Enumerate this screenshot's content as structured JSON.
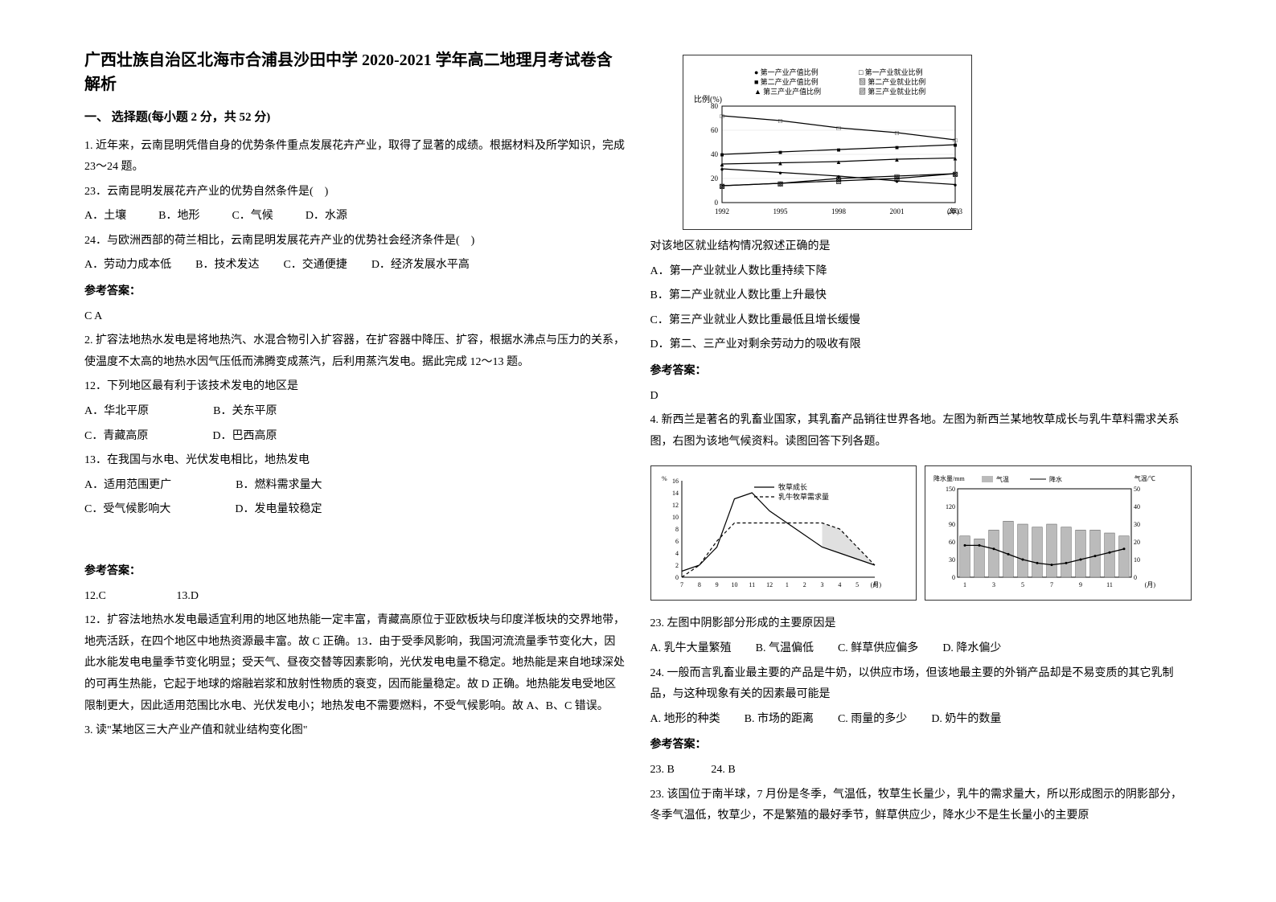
{
  "title": "广西壮族自治区北海市合浦县沙田中学 2020-2021 学年高二地理月考试卷含解析",
  "section1": "一、 选择题(每小题 2 分，共 52 分)",
  "q1": {
    "stem": "1. 近年来，云南昆明凭借自身的优势条件重点发展花卉产业，取得了显著的成绩。根据材料及所学知识，完成 23～24 题。",
    "sub23": "23．云南昆明发展花卉产业的优势自然条件是(　)",
    "opts23": {
      "A": "A．土壤",
      "B": "B．地形",
      "C": "C．气候",
      "D": "D．水源"
    },
    "sub24": "24．与欧洲西部的荷兰相比，云南昆明发展花卉产业的优势社会经济条件是(　)",
    "opts24": {
      "A": "A．劳动力成本低",
      "B": "B．技术发达",
      "C": "C．交通便捷",
      "D": "D．经济发展水平高"
    },
    "ansLabel": "参考答案：",
    "ans": "C A"
  },
  "q2": {
    "stem": "2. 扩容法地热水发电是将地热汽、水混合物引入扩容器，在扩容器中降压、扩容，根据水沸点与压力的关系，使温度不太高的地热水因气压低而沸腾变成蒸汽，后利用蒸汽发电。据此完成 12～13 题。",
    "sub12": "12．下列地区最有利于该技术发电的地区是",
    "opts12a": {
      "A": "A．华北平原",
      "B": "B．关东平原"
    },
    "opts12b": {
      "C": "C．青藏高原",
      "D": "D．巴西高原"
    },
    "sub13": "13．在我国与水电、光伏发电相比，地热发电",
    "opts13a": {
      "A": "A．适用范围更广",
      "B": "B．燃料需求量大"
    },
    "opts13b": {
      "C": "C．受气候影响大",
      "D": "D．发电量较稳定"
    },
    "ansLabel": "参考答案：",
    "ans1": "12.C　　　　　　 13.D",
    "expl1": "12．扩容法地热水发电最适宜利用的地区地热能一定丰富，青藏高原位于亚欧板块与印度洋板块的交界地带，地壳活跃，在四个地区中地热资源最丰富。故 C 正确。13．由于受季风影响，我国河流流量季节变化大，因此水能发电电量季节变化明显；受天气、昼夜交替等因素影响，光伏发电电量不稳定。地热能是来自地球深处的可再生热能，它起于地球的熔融岩浆和放射性物质的衰变，因而能量稳定。故 D 正确。地热能发电受地区限制更大，因此适用范围比水电、光伏发电小；地热发电不需要燃料，不受气候影响。故 A、B、C 错误。"
  },
  "q3": {
    "stem": "3. 读\"某地区三大产业产值和就业结构变化图\"",
    "chart": {
      "type": "line",
      "legend": [
        "第一产业产值比例",
        "第一产业就业比例",
        "第二产业产值比例",
        "第二产业就业比例",
        "第三产业产值比例",
        "第三产业就业比例"
      ],
      "legend_markers": [
        "circle-filled",
        "square-open",
        "square-filled",
        "square-hatch",
        "triangle-filled",
        "triangle-hatch"
      ],
      "ylabel": "比例(%)",
      "ylim": [
        0,
        80
      ],
      "ytick_step": 20,
      "xlabel": "(年)",
      "years": [
        1992,
        1995,
        1998,
        2001,
        2003
      ],
      "series": {
        "p1_value": [
          28,
          25,
          22,
          18,
          15
        ],
        "p1_employ": [
          72,
          68,
          62,
          58,
          52
        ],
        "p2_value": [
          40,
          42,
          44,
          46,
          48
        ],
        "p2_employ": [
          14,
          16,
          18,
          20,
          24
        ],
        "p3_value": [
          32,
          33,
          34,
          36,
          37
        ],
        "p3_employ": [
          14,
          16,
          20,
          22,
          24
        ]
      },
      "colors": {
        "line": "#000000",
        "grid": "#cccccc",
        "bg": "#ffffff"
      },
      "line_width": 1.2
    },
    "sub": "对该地区就业结构情况叙述正确的是",
    "optA": "A．第一产业就业人数比重持续下降",
    "optB": "B．第二产业就业人数比重上升最快",
    "optC": "C．第三产业就业人数比重最低且增长缓慢",
    "optD": "D．第二、三产业对剩余劳动力的吸收有限",
    "ansLabel": "参考答案：",
    "ans": "D"
  },
  "q4": {
    "stem": "4. 新西兰是著名的乳畜业国家，其乳畜产品销往世界各地。左图为新西兰某地牧草成长与乳牛草料需求关系图，右图为该地气候资料。读图回答下列各题。",
    "chartL": {
      "type": "line",
      "legend": [
        "牧草成长",
        "乳牛牧草需求量"
      ],
      "legend_styles": [
        "solid",
        "dashed"
      ],
      "ylim": [
        0,
        16
      ],
      "yticks": [
        0,
        2,
        4,
        6,
        8,
        10,
        12,
        14,
        16
      ],
      "ylabel": "%",
      "xlabel": "(月)",
      "months": [
        7,
        8,
        9,
        10,
        11,
        12,
        1,
        2,
        3,
        4,
        5,
        6
      ],
      "grass": [
        1,
        2,
        5,
        13,
        14,
        11,
        9,
        7,
        5,
        4,
        3,
        2
      ],
      "demand": [
        0,
        2,
        6,
        9,
        9,
        9,
        9,
        9,
        9,
        8,
        5,
        2
      ],
      "colors": {
        "line": "#000000"
      },
      "line_width": 1.2
    },
    "chartR": {
      "type": "climograph",
      "legend": [
        "气温",
        "降水"
      ],
      "y1label": "降水量/mm",
      "y1lim": [
        0,
        150
      ],
      "y1ticks": [
        0,
        30,
        60,
        90,
        120,
        150
      ],
      "y2label": "气温/℃",
      "y2lim": [
        0,
        50
      ],
      "y2ticks": [
        0,
        10,
        20,
        30,
        40,
        50
      ],
      "xlabel": "(月)",
      "months": [
        1,
        3,
        5,
        7,
        9,
        11
      ],
      "precip": [
        70,
        65,
        80,
        95,
        90,
        85,
        90,
        85,
        80,
        80,
        75,
        70
      ],
      "temp": [
        18,
        18,
        16,
        13,
        10,
        8,
        7,
        8,
        10,
        12,
        14,
        16
      ],
      "colors": {
        "bar": "#888888",
        "bar_hatch": "#dddddd",
        "line": "#000000"
      },
      "bar_width": 0.7
    },
    "sub23": "23.  左图中阴影部分形成的主要原因是",
    "opts23": {
      "A": "A. 乳牛大量繁殖",
      "B": "B. 气温偏低",
      "C": "C. 鲜草供应偏多",
      "D": "D. 降水偏少"
    },
    "sub24": "24.  一般而言乳畜业最主要的产品是牛奶，以供应市场，但该地最主要的外销产品却是不易变质的其它乳制品，与这种现象有关的因素最可能是",
    "opts24": {
      "A": "A. 地形的种类",
      "B": "B. 市场的距离",
      "C": "C. 雨量的多少",
      "D": "D. 奶牛的数量"
    },
    "ansLabel": "参考答案：",
    "ans": "23. B　　　 24. B",
    "expl": "23.  该国位于南半球，7 月份是冬季，气温低，牧草生长量少，乳牛的需求量大，所以形成图示的阴影部分，冬季气温低，牧草少，不是繁殖的最好季节，鲜草供应少，降水少不是生长量小的主要原"
  }
}
